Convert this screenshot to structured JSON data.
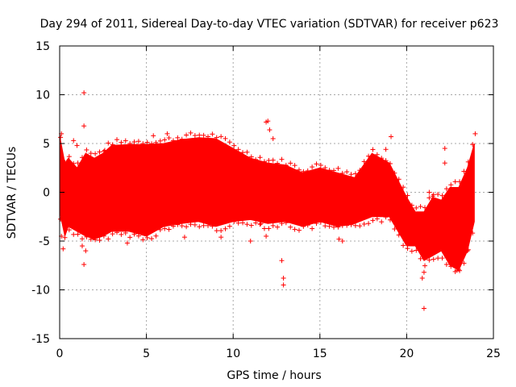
{
  "chart_data": {
    "type": "scatter",
    "title": "Day 294 of 2011, Sidereal Day-to-day VTEC variation (SDTVAR) for receiver p623",
    "xlabel": "GPS time / hours",
    "ylabel": "SDTVAR / TECUs",
    "xlim": [
      0,
      25
    ],
    "ylim": [
      -15,
      15
    ],
    "x_ticks": [
      0,
      5,
      10,
      15,
      20,
      25
    ],
    "y_ticks": [
      -15,
      -10,
      -5,
      0,
      5,
      10,
      15
    ],
    "x_tick_labels": [
      "0",
      "5",
      "10",
      "15",
      "20",
      "25"
    ],
    "y_tick_labels": [
      "-15",
      "-10",
      "-5",
      "0",
      "5",
      "10",
      "15"
    ],
    "grid": true,
    "marker": "+",
    "series_color": "#ff0000",
    "series": [
      {
        "name": "SDTVAR",
        "envelope": {
          "x": [
            0,
            0.3,
            0.5,
            1.0,
            1.5,
            2.0,
            2.5,
            3.0,
            4.0,
            5.0,
            6.0,
            7.0,
            8.0,
            9.0,
            10.0,
            11.0,
            12.0,
            13.0,
            14.0,
            15.0,
            16.0,
            17.0,
            18.0,
            19.0,
            20.0,
            20.5,
            21.0,
            21.5,
            22.0,
            22.5,
            23.0,
            23.5,
            23.9
          ],
          "upper": [
            5.8,
            3.0,
            3.5,
            2.5,
            4.0,
            3.5,
            4.0,
            4.8,
            4.9,
            4.9,
            5.0,
            5.4,
            5.6,
            5.5,
            4.5,
            3.5,
            3.0,
            2.8,
            2.0,
            2.5,
            2.0,
            1.5,
            4.0,
            3.0,
            -0.5,
            -2.0,
            -2.0,
            -0.5,
            -0.8,
            0.5,
            0.5,
            2.5,
            5.0
          ],
          "lower": [
            -2.0,
            -4.5,
            -3.5,
            -4.0,
            -4.5,
            -4.8,
            -4.5,
            -4.0,
            -4.0,
            -4.5,
            -3.5,
            -3.2,
            -3.0,
            -3.5,
            -3.0,
            -2.8,
            -3.2,
            -3.0,
            -3.5,
            -3.0,
            -3.5,
            -3.2,
            -2.5,
            -2.5,
            -5.5,
            -5.5,
            -7.0,
            -6.5,
            -6.0,
            -7.5,
            -8.0,
            -6.0,
            -3.0
          ]
        },
        "points": [
          [
            1.4,
            10.2
          ],
          [
            1.4,
            6.8
          ],
          [
            0.8,
            5.3
          ],
          [
            0.1,
            6.0
          ],
          [
            1.0,
            4.8
          ],
          [
            2.6,
            4.3
          ],
          [
            3.8,
            4.2
          ],
          [
            3.9,
            4.4
          ],
          [
            5.4,
            5.8
          ],
          [
            6.2,
            6.0
          ],
          [
            12.0,
            7.3
          ],
          [
            11.9,
            7.2
          ],
          [
            12.1,
            6.4
          ],
          [
            12.3,
            5.5
          ],
          [
            19.1,
            5.7
          ],
          [
            20.0,
            -2.8
          ],
          [
            1.4,
            -7.4
          ],
          [
            1.5,
            -6.0
          ],
          [
            1.3,
            -5.5
          ],
          [
            3.9,
            -5.2
          ],
          [
            7.2,
            -4.6
          ],
          [
            9.3,
            -4.6
          ],
          [
            11.0,
            -5.0
          ],
          [
            11.6,
            -3.2
          ],
          [
            11.9,
            -4.5
          ],
          [
            12.8,
            -7.0
          ],
          [
            12.9,
            -9.5
          ],
          [
            12.9,
            -8.8
          ],
          [
            16.1,
            -4.8
          ],
          [
            16.3,
            -5.0
          ],
          [
            21.0,
            -11.9
          ],
          [
            20.9,
            -8.8
          ],
          [
            21.0,
            -8.2
          ],
          [
            22.4,
            -6.4
          ],
          [
            22.9,
            -8.0
          ],
          [
            23.0,
            -7.9
          ],
          [
            23.5,
            -6.0
          ],
          [
            23.95,
            6.0
          ],
          [
            22.2,
            4.5
          ],
          [
            22.2,
            3.0
          ],
          [
            21.3,
            0.0
          ],
          [
            21.5,
            -0.4
          ],
          [
            0.1,
            -4.5
          ],
          [
            0.2,
            -5.8
          ],
          [
            18.8,
            4.4
          ],
          [
            6.1,
            4.2
          ]
        ]
      }
    ]
  }
}
